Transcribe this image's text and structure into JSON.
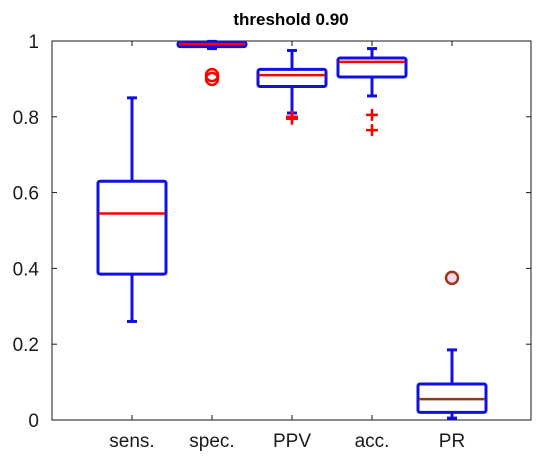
{
  "chart_data": {
    "type": "box",
    "title": "threshold 0.90",
    "xlabel": "",
    "ylabel": "",
    "ylim": [
      0,
      1
    ],
    "yticks": [
      0,
      0.2,
      0.4,
      0.6,
      0.8,
      1
    ],
    "ytick_labels": [
      "0",
      "0.2",
      "0.4",
      "0.6",
      "0.8",
      "1"
    ],
    "grid": false,
    "categories": [
      "sens.",
      "spec.",
      "PPV",
      "acc.",
      "PR"
    ],
    "boxes": [
      {
        "category": "sens.",
        "whisker_low": 0.26,
        "q1": 0.385,
        "median": 0.545,
        "q3": 0.63,
        "whisker_high": 0.85,
        "outliers": [],
        "outlier_marker": ""
      },
      {
        "category": "spec.",
        "whisker_low": 0.98,
        "q1": 0.985,
        "median": 0.992,
        "q3": 0.997,
        "whisker_high": 0.999,
        "outliers": [
          0.91,
          0.9
        ],
        "outlier_marker": "circle"
      },
      {
        "category": "PPV",
        "whisker_low": 0.81,
        "q1": 0.88,
        "median": 0.91,
        "q3": 0.925,
        "whisker_high": 0.975,
        "outliers": [
          0.8,
          0.795
        ],
        "outlier_marker": "plus"
      },
      {
        "category": "acc.",
        "whisker_low": 0.855,
        "q1": 0.905,
        "median": 0.945,
        "q3": 0.955,
        "whisker_high": 0.98,
        "outliers": [
          0.805,
          0.765
        ],
        "outlier_marker": "plus"
      },
      {
        "category": "PR",
        "whisker_low": 0.005,
        "q1": 0.02,
        "median": 0.055,
        "q3": 0.095,
        "whisker_high": 0.185,
        "outliers": [
          0.375
        ],
        "outlier_marker": "circle"
      }
    ],
    "colors": {
      "box": "#1010e0",
      "median": "#ff0000",
      "outlier": "#ff0000",
      "pr_median": "#8b3a1a",
      "pr_outlier": "#9b3a1a",
      "pr_outlier_fill": "#f4d8ee",
      "axes": "#1a1a1a"
    }
  }
}
